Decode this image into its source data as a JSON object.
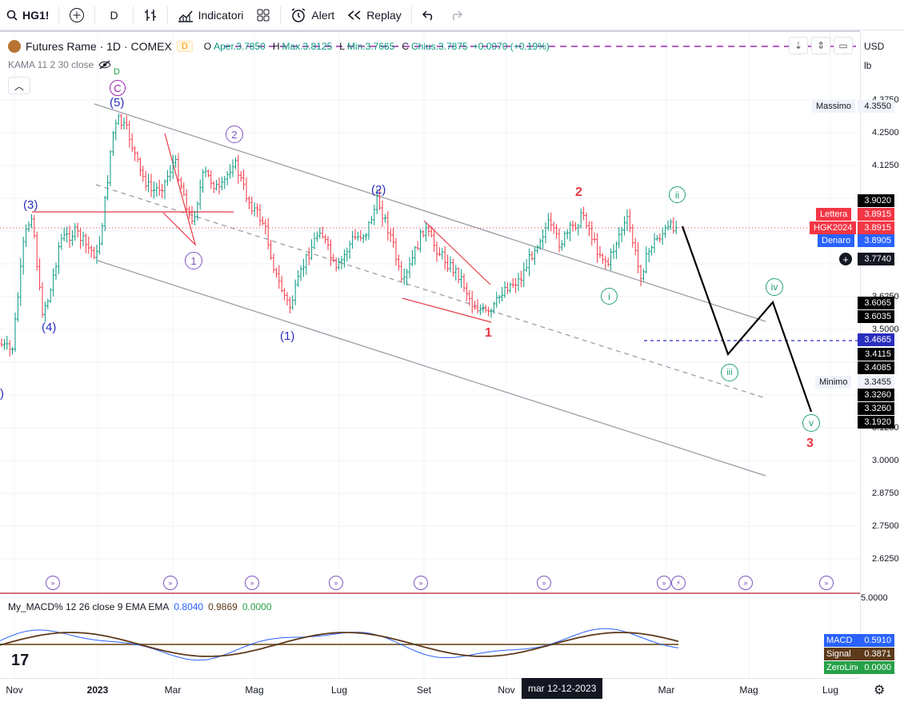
{
  "toolbar": {
    "symbol": "HG1!",
    "interval": "D",
    "indicators": "Indicatori",
    "alert": "Alert",
    "replay": "Replay"
  },
  "legend": {
    "title": "Futures Rame · 1D · COMEX",
    "badge": "D",
    "o_label": "O",
    "o": "Aper.3.7850",
    "h_label": "H",
    "h": "Max.3.8125",
    "l_label": "L",
    "l": "Min.3.7665",
    "c_label": "C",
    "c": "Chius.3.7875",
    "chg": "+0.0070 (+0.19%)",
    "kama": "KAMA 11 2 30 close"
  },
  "axis_top": {
    "currency": "USD",
    "unit": "lb"
  },
  "price_ticks": [
    "4.3750",
    "4.2500",
    "4.1250",
    "3.6250",
    "3.5000",
    "3.1250",
    "3.0000",
    "2.8750",
    "2.7500",
    "2.6250"
  ],
  "price_labels": {
    "massimo_label": "Massimo",
    "massimo": "4.3550",
    "p3902": "3.9020",
    "lettera_label": "Lettera",
    "lettera": "3.8915",
    "hgk_label": "HGK2024",
    "hgk": "3.8915",
    "denaro_label": "Denaro",
    "denaro": "3.8905",
    "cross": "3.7740",
    "p36065": "3.6065",
    "p36035": "3.6035",
    "p34665": "3.4665",
    "p34115": "3.4115",
    "p34085": "3.4085",
    "minimo_label": "Minimo",
    "minimo": "3.3455",
    "p33260a": "3.3260",
    "p33260b": "3.3260",
    "p31920": "3.1920",
    "macd_scale": "5.0000"
  },
  "waves": {
    "C": "C",
    "D": "D",
    "p5": "(5)",
    "p3": "(3)",
    "p4": "(4)",
    "p1": "(1)",
    "p2": "(2)",
    "c1": "1",
    "c2": "2",
    "r1": "1",
    "r2": "2",
    "r3": "3",
    "i": "i",
    "ii": "ii",
    "iii": "iii",
    "iv": "iv",
    "v": "v",
    "left": ")"
  },
  "macd": {
    "label": "My_MACD% 12 26 close 9 EMA EMA",
    "v1": "0.8040",
    "v2": "0.9869",
    "v3": "0.0000",
    "macd_label": "MACD",
    "macd_val": "0.5910",
    "signal_label": "Signal",
    "signal_val": "0.3871",
    "zero_label": "ZeroLine",
    "zero_val": "0.0000",
    "logo": "17"
  },
  "xaxis": {
    "ticks": [
      "Nov",
      "2023",
      "Mar",
      "Mag",
      "Lug",
      "Set",
      "Nov",
      "Mar",
      "Mag",
      "Lug"
    ],
    "highlight": "mar 12-12-2023"
  },
  "colors": {
    "up": "#089981",
    "down": "#f23645",
    "wave_blue": "#2a2ebd",
    "wave_purple": "#7e57c2",
    "wave_red": "#e53945",
    "wave_teal": "#22a07a"
  }
}
